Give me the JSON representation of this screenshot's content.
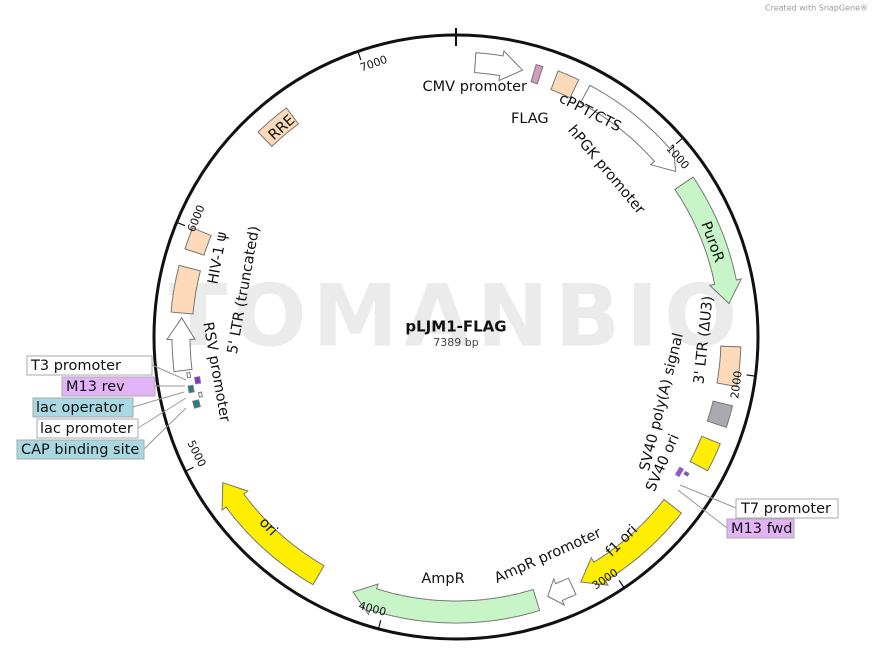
{
  "plasmid": {
    "name": "pLJM1-FLAG",
    "size": {
      "value": 7389,
      "label": "7389 bp"
    }
  },
  "ticks": [
    1000,
    2000,
    3000,
    4000,
    5000,
    6000,
    7000
  ],
  "features": [
    "CMV promoter",
    "FLAG",
    "cPPT/CTS",
    "hPGK promoter",
    "PuroR",
    "3' LTR (ΔU3)",
    "SV40 poly(A) signal",
    "SV40 ori",
    "T7 promoter",
    "M13 fwd",
    "f1 ori",
    "AmpR promoter",
    "AmpR",
    "ori",
    "CAP binding site",
    "lac promoter",
    "lac operator",
    "M13 rev",
    "T3 promoter",
    "RSV promoter",
    "5' LTR (truncated)",
    "HIV-1 ψ",
    "RRE"
  ],
  "watermark": "TOMANBIO",
  "credit": "Created with SnapGene®"
}
